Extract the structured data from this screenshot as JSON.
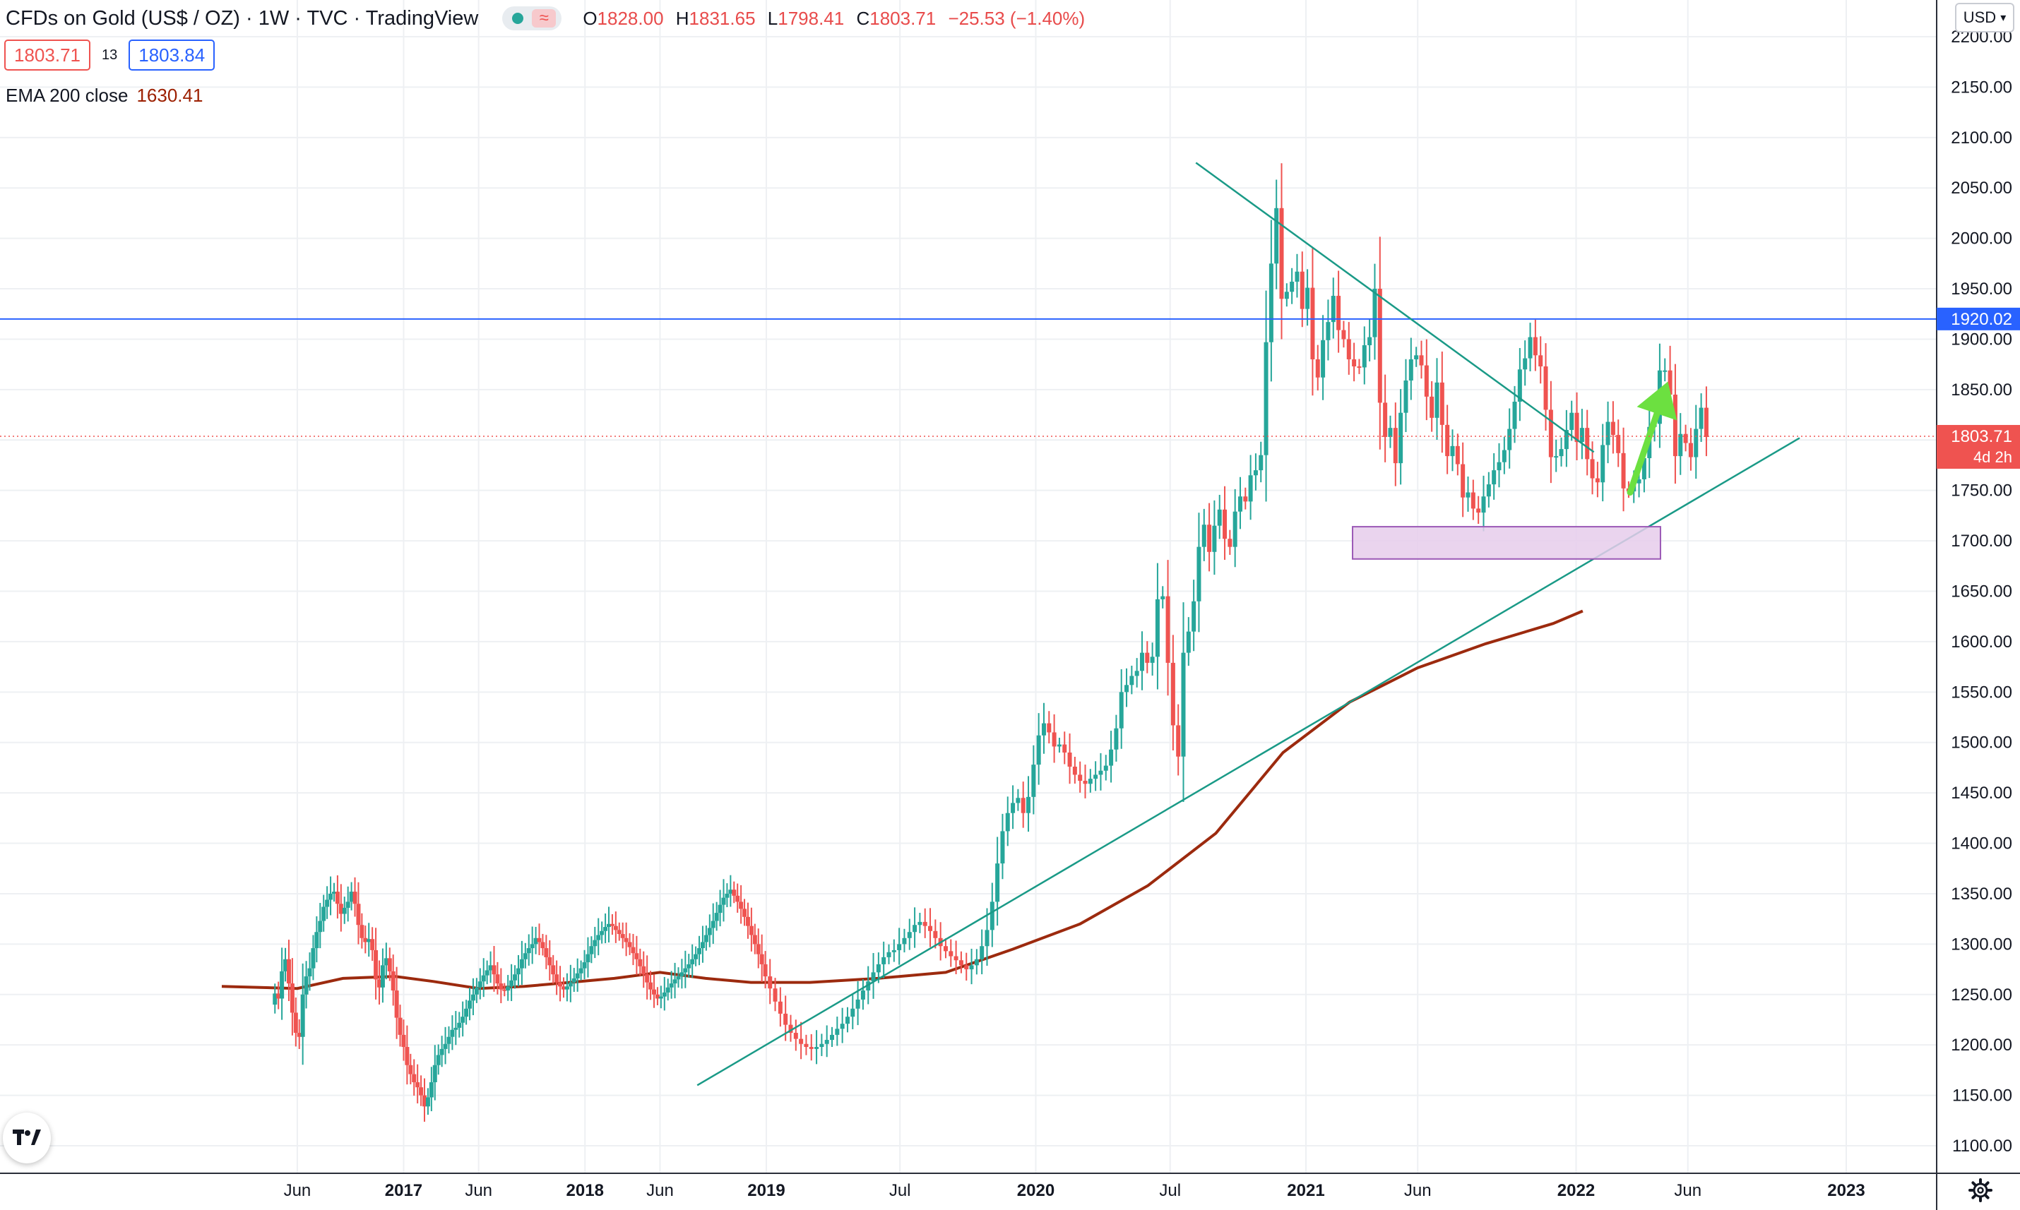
{
  "header": {
    "title": "CFDs on Gold (US$ / OZ) · 1W · TVC · TradingView",
    "ohlc": {
      "o_label": "O",
      "o_value": "1828.00",
      "h_label": "H",
      "h_value": "1831.65",
      "l_label": "L",
      "l_value": "1798.41",
      "c_label": "C",
      "c_value": "1803.71",
      "change": "−25.53 (−1.40%)"
    },
    "live_icon": "approx-wave-icon"
  },
  "trade": {
    "sell_price": "1803.71",
    "spread": "13",
    "buy_price": "1803.84"
  },
  "indicator": {
    "name": "EMA 200 close",
    "value": "1630.41"
  },
  "currency": {
    "label": "USD",
    "icon": "chevron-down-icon"
  },
  "price_scale": {
    "ticks": [
      "2200.00",
      "2150.00",
      "2100.00",
      "2050.00",
      "2000.00",
      "1950.00",
      "1900.00",
      "1850.00",
      "1800.00",
      "1750.00",
      "1700.00",
      "1650.00",
      "1600.00",
      "1550.00",
      "1500.00",
      "1450.00",
      "1400.00",
      "1350.00",
      "1300.00",
      "1250.00",
      "1200.00",
      "1150.00",
      "1100.00"
    ],
    "level_label": "1920.02",
    "last_price_label": "1803.71",
    "countdown_label": "4d 2h"
  },
  "time_scale": {
    "ticks": [
      "Jun",
      "2017",
      "Jun",
      "2018",
      "Jun",
      "2019",
      "Jul",
      "2020",
      "Jul",
      "2021",
      "Jun",
      "2022",
      "Jun",
      "2023"
    ]
  },
  "colors": {
    "up": "#26a69a",
    "down": "#ef5350",
    "ema": "#9c2a0e",
    "hline": "#2962ff",
    "trendline": "#1a9a87",
    "zone_fill": "#e6cdeb",
    "zone_border": "#9b59b6",
    "arrow": "#6ce040"
  },
  "chart_data": {
    "type": "candlestick",
    "title": "CFDs on Gold (US$ / OZ) · 1W · TVC · TradingView",
    "ylim": [
      1080,
      2220
    ],
    "x_ticks": [
      "Jun",
      "2017",
      "Jun",
      "2018",
      "Jun",
      "2019",
      "Jul",
      "2020",
      "Jul",
      "2021",
      "Jun",
      "2022",
      "Jun",
      "2023"
    ],
    "y_ticks": [
      1100,
      1150,
      1200,
      1250,
      1300,
      1350,
      1400,
      1450,
      1500,
      1550,
      1600,
      1650,
      1700,
      1750,
      1800,
      1850,
      1900,
      1950,
      2000,
      2050,
      2100,
      2150,
      2200
    ],
    "series": [
      {
        "type": "candles",
        "interval": "1W",
        "start_date": "2016-04-17",
        "closes": [
          1251,
          1246,
          1273,
          1285,
          1261,
          1232,
          1212,
          1208,
          1250,
          1268,
          1276,
          1296,
          1312,
          1323,
          1337,
          1344,
          1350,
          1352,
          1340,
          1330,
          1336,
          1342,
          1352,
          1340,
          1319,
          1306,
          1302,
          1305,
          1294,
          1265,
          1257,
          1279,
          1286,
          1273,
          1254,
          1227,
          1210,
          1198,
          1180,
          1171,
          1163,
          1158,
          1150,
          1139,
          1148,
          1163,
          1180,
          1190,
          1196,
          1201,
          1208,
          1215,
          1217,
          1222,
          1228,
          1236,
          1244,
          1250,
          1257,
          1263,
          1269,
          1274,
          1279,
          1270,
          1261,
          1255,
          1254,
          1258,
          1264,
          1270,
          1276,
          1285,
          1291,
          1296,
          1300,
          1306,
          1302,
          1296,
          1287,
          1279,
          1270,
          1262,
          1258,
          1255,
          1258,
          1262,
          1266,
          1271,
          1276,
          1282,
          1290,
          1298,
          1304,
          1309,
          1313,
          1317,
          1320,
          1318,
          1314,
          1310,
          1306,
          1302,
          1297,
          1291,
          1285,
          1278,
          1270,
          1262,
          1255,
          1250,
          1246,
          1248,
          1252,
          1257,
          1261,
          1265,
          1268,
          1272,
          1276,
          1280,
          1285,
          1290,
          1296,
          1302,
          1309,
          1316,
          1323,
          1331,
          1339,
          1346,
          1350,
          1354,
          1348,
          1342,
          1335,
          1327,
          1318,
          1309,
          1300,
          1290,
          1280,
          1268,
          1256,
          1243,
          1231,
          1220,
          1212,
          1206,
          1201,
          1198,
          1196,
          1198,
          1201,
          1205,
          1210,
          1216,
          1221,
          1228,
          1236,
          1245,
          1254,
          1263,
          1272,
          1280,
          1287,
          1292,
          1294,
          1300,
          1306,
          1312,
          1319,
          1322,
          1318,
          1313,
          1306,
          1298,
          1293,
          1288,
          1284,
          1279,
          1275,
          1279,
          1285,
          1298,
          1314,
          1342,
          1380,
          1412,
          1430,
          1440,
          1445,
          1430,
          1446,
          1478,
          1507,
          1519,
          1510,
          1496,
          1498,
          1490,
          1476,
          1468,
          1462,
          1459,
          1464,
          1468,
          1472,
          1477,
          1493,
          1514,
          1550,
          1557,
          1566,
          1571,
          1589,
          1579,
          1585,
          1642,
          1645,
          1579,
          1517,
          1486,
          1589,
          1610,
          1640,
          1694,
          1716,
          1689,
          1715,
          1731,
          1702,
          1694,
          1729,
          1744,
          1739,
          1765,
          1770,
          1785,
          1897,
          1975,
          2030,
          1940,
          1947,
          1957,
          1967,
          1930,
          1951,
          1880,
          1862,
          1899,
          1917,
          1943,
          1909,
          1900,
          1880,
          1873,
          1872,
          1894,
          1902,
          1950,
          1837,
          1803,
          1812,
          1777,
          1827,
          1859,
          1880,
          1884,
          1874,
          1843,
          1822,
          1857,
          1815,
          1784,
          1794,
          1776,
          1743,
          1748,
          1732,
          1728,
          1744,
          1756,
          1770,
          1778,
          1790,
          1811,
          1838,
          1870,
          1881,
          1902,
          1884,
          1873,
          1830,
          1783,
          1784,
          1791,
          1810,
          1827,
          1798,
          1812,
          1781,
          1762,
          1758,
          1795,
          1818,
          1805,
          1787,
          1752,
          1749,
          1757,
          1761,
          1782,
          1813,
          1816,
          1869,
          1869,
          1845,
          1784,
          1806,
          1797,
          1783,
          1811,
          1832,
          1803
        ],
        "color_up": "#26a69a",
        "color_down": "#ef5350"
      },
      {
        "name": "EMA 200 close",
        "type": "line",
        "last_value": 1630.41,
        "color": "#9c2a0e"
      }
    ],
    "annotations": [
      {
        "type": "horizontal_line",
        "price": 1920.02,
        "color": "#2962ff"
      },
      {
        "type": "trendline",
        "from": [
          "2018-08-15",
          1160
        ],
        "to": [
          "2022-10-30",
          1802
        ]
      },
      {
        "type": "trendline",
        "from": [
          "2020-08-05",
          2075
        ],
        "to": [
          "2022-01-25",
          1788
        ]
      },
      {
        "type": "rectangle",
        "from": [
          "2021-03-05",
          1682
        ],
        "to": [
          "2022-04-25",
          1714
        ],
        "color": "#9b59b6"
      },
      {
        "type": "arrow",
        "from": [
          "2022-03-15",
          1748
        ],
        "to": [
          "2022-05-05",
          1858
        ],
        "color": "#6ce040"
      }
    ]
  }
}
